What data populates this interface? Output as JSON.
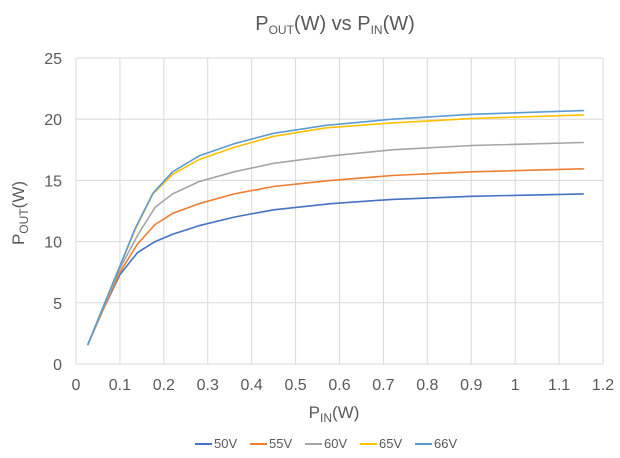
{
  "chart_data": {
    "type": "line",
    "title": {
      "main": "P",
      "sub1": "OUT",
      "mid": "(W) vs P",
      "sub2": "IN",
      "end": "(W)"
    },
    "xlabel": {
      "main": "P",
      "sub": "IN",
      "end": "(W)"
    },
    "ylabel": {
      "main": "P",
      "sub": "OUT",
      "end": "(W)"
    },
    "xlim": [
      0,
      1.2
    ],
    "ylim": [
      0,
      25
    ],
    "x_ticks": [
      "0",
      "0.1",
      "0.2",
      "0.3",
      "0.4",
      "0.5",
      "0.6",
      "0.7",
      "0.8",
      "0.9",
      "1",
      "1.1",
      "1.2"
    ],
    "y_ticks": [
      "0",
      "5",
      "10",
      "15",
      "20",
      "25"
    ],
    "grid": "vertical and horizontal major gridlines",
    "legend_position": "bottom",
    "series": [
      {
        "name": "50V",
        "color": "#4472C4",
        "points": [
          [
            0.027,
            1.6
          ],
          [
            0.06,
            4.3
          ],
          [
            0.1,
            7.3
          ],
          [
            0.14,
            9.1
          ],
          [
            0.18,
            10.0
          ],
          [
            0.22,
            10.6
          ],
          [
            0.28,
            11.3
          ],
          [
            0.36,
            12.0
          ],
          [
            0.45,
            12.6
          ],
          [
            0.58,
            13.1
          ],
          [
            0.72,
            13.45
          ],
          [
            0.9,
            13.7
          ],
          [
            1.155,
            13.9
          ]
        ]
      },
      {
        "name": "55V",
        "color": "#ED7D31",
        "points": [
          [
            0.027,
            1.6
          ],
          [
            0.06,
            4.3
          ],
          [
            0.1,
            7.5
          ],
          [
            0.14,
            9.8
          ],
          [
            0.18,
            11.4
          ],
          [
            0.22,
            12.3
          ],
          [
            0.28,
            13.1
          ],
          [
            0.36,
            13.9
          ],
          [
            0.45,
            14.5
          ],
          [
            0.58,
            15.0
          ],
          [
            0.72,
            15.4
          ],
          [
            0.9,
            15.7
          ],
          [
            1.155,
            15.95
          ]
        ]
      },
      {
        "name": "60V",
        "color": "#A5A5A5",
        "points": [
          [
            0.027,
            1.6
          ],
          [
            0.06,
            4.4
          ],
          [
            0.1,
            7.8
          ],
          [
            0.14,
            10.5
          ],
          [
            0.18,
            12.8
          ],
          [
            0.22,
            13.9
          ],
          [
            0.28,
            14.9
          ],
          [
            0.36,
            15.7
          ],
          [
            0.45,
            16.4
          ],
          [
            0.58,
            17.0
          ],
          [
            0.72,
            17.5
          ],
          [
            0.9,
            17.85
          ],
          [
            1.155,
            18.1
          ]
        ]
      },
      {
        "name": "65V",
        "color": "#FFC000",
        "points": [
          [
            0.027,
            1.6
          ],
          [
            0.06,
            4.5
          ],
          [
            0.1,
            8.0
          ],
          [
            0.135,
            11.0
          ],
          [
            0.175,
            13.9
          ],
          [
            0.22,
            15.5
          ],
          [
            0.28,
            16.7
          ],
          [
            0.36,
            17.7
          ],
          [
            0.45,
            18.6
          ],
          [
            0.57,
            19.3
          ],
          [
            0.72,
            19.7
          ],
          [
            0.9,
            20.05
          ],
          [
            1.155,
            20.35
          ]
        ]
      },
      {
        "name": "66V",
        "color": "#5B9BD5",
        "points": [
          [
            0.027,
            1.6
          ],
          [
            0.06,
            4.5
          ],
          [
            0.1,
            8.0
          ],
          [
            0.135,
            11.1
          ],
          [
            0.175,
            13.95
          ],
          [
            0.22,
            15.7
          ],
          [
            0.28,
            17.0
          ],
          [
            0.36,
            18.0
          ],
          [
            0.45,
            18.85
          ],
          [
            0.57,
            19.5
          ],
          [
            0.72,
            20.0
          ],
          [
            0.9,
            20.4
          ],
          [
            1.155,
            20.7
          ]
        ]
      }
    ]
  }
}
